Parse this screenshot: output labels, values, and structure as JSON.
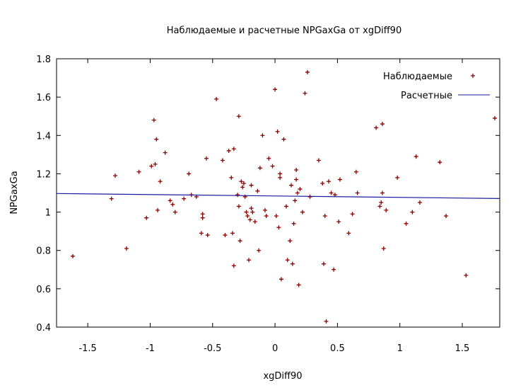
{
  "chart_data": {
    "type": "scatter",
    "title": "Наблюдаемые и расчетные NPGaxGa от xgDiff90",
    "xlabel": "xgDiff90",
    "ylabel": "NPGaxGa",
    "xlim": [
      -1.75,
      1.8
    ],
    "ylim": [
      0.4,
      1.8
    ],
    "grid": false,
    "legend_position": "top-right",
    "x_ticks": [
      -1.5,
      -1,
      -0.5,
      0,
      0.5,
      1,
      1.5
    ],
    "y_ticks": [
      0.4,
      0.6,
      0.8,
      1.0,
      1.2,
      1.4,
      1.6,
      1.8
    ],
    "x_tick_labels": [
      "-1.5",
      "-1",
      "-0.5",
      "0",
      "0.5",
      "1",
      "1.5"
    ],
    "y_tick_labels": [
      "0.4",
      "0.6",
      "0.8",
      "1",
      "1.2",
      "1.4",
      "1.6",
      "1.8"
    ],
    "series": [
      {
        "name": "Наблюдаемые",
        "kind": "points",
        "marker": "plus",
        "color": "#8b0000",
        "points": [
          [
            -1.62,
            0.77
          ],
          [
            -1.31,
            1.07
          ],
          [
            -1.28,
            1.19
          ],
          [
            -1.19,
            0.81
          ],
          [
            -1.09,
            1.21
          ],
          [
            -1.03,
            0.97
          ],
          [
            -0.99,
            1.24
          ],
          [
            -0.97,
            1.48
          ],
          [
            -0.96,
            1.25
          ],
          [
            -0.95,
            1.38
          ],
          [
            -0.94,
            1.01
          ],
          [
            -0.92,
            1.16
          ],
          [
            -0.88,
            1.31
          ],
          [
            -0.84,
            1.06
          ],
          [
            -0.82,
            1.04
          ],
          [
            -0.8,
            1.0
          ],
          [
            -0.73,
            1.07
          ],
          [
            -0.69,
            1.2
          ],
          [
            -0.67,
            1.09
          ],
          [
            -0.63,
            1.08
          ],
          [
            -0.59,
            0.89
          ],
          [
            -0.58,
            0.99
          ],
          [
            -0.58,
            0.97
          ],
          [
            -0.55,
            1.28
          ],
          [
            -0.54,
            0.88
          ],
          [
            -0.47,
            1.59
          ],
          [
            -0.42,
            1.27
          ],
          [
            -0.4,
            0.88
          ],
          [
            -0.37,
            1.32
          ],
          [
            -0.35,
            1.18
          ],
          [
            -0.34,
            0.89
          ],
          [
            -0.33,
            1.33
          ],
          [
            -0.33,
            0.72
          ],
          [
            -0.3,
            1.09
          ],
          [
            -0.29,
            1.5
          ],
          [
            -0.29,
            1.03
          ],
          [
            -0.28,
            0.85
          ],
          [
            -0.27,
            1.16
          ],
          [
            -0.26,
            1.13
          ],
          [
            -0.25,
            1.15
          ],
          [
            -0.24,
            1.08
          ],
          [
            -0.23,
            1.0
          ],
          [
            -0.22,
            0.98
          ],
          [
            -0.21,
            0.75
          ],
          [
            -0.2,
            0.96
          ],
          [
            -0.19,
            1.02
          ],
          [
            -0.19,
            1.14
          ],
          [
            -0.18,
            1.0
          ],
          [
            -0.16,
            0.95
          ],
          [
            -0.14,
            1.11
          ],
          [
            -0.13,
            0.8
          ],
          [
            -0.12,
            1.23
          ],
          [
            -0.1,
            1.4
          ],
          [
            -0.08,
            1.01
          ],
          [
            -0.07,
            0.98
          ],
          [
            -0.05,
            1.28
          ],
          [
            -0.02,
            1.24
          ],
          [
            0.0,
            1.64
          ],
          [
            0.01,
            0.98
          ],
          [
            0.02,
            1.42
          ],
          [
            0.03,
            0.92
          ],
          [
            0.04,
            1.2
          ],
          [
            0.04,
            1.18
          ],
          [
            0.05,
            0.65
          ],
          [
            0.07,
            1.38
          ],
          [
            0.09,
            1.03
          ],
          [
            0.1,
            0.75
          ],
          [
            0.12,
            0.85
          ],
          [
            0.13,
            1.14
          ],
          [
            0.14,
            0.73
          ],
          [
            0.15,
            0.94
          ],
          [
            0.16,
            1.06
          ],
          [
            0.17,
            1.17
          ],
          [
            0.17,
            1.22
          ],
          [
            0.18,
            1.1
          ],
          [
            0.19,
            0.62
          ],
          [
            0.2,
            1.12
          ],
          [
            0.22,
            1.0
          ],
          [
            0.24,
            1.62
          ],
          [
            0.26,
            1.73
          ],
          [
            0.28,
            1.08
          ],
          [
            0.35,
            1.27
          ],
          [
            0.38,
            1.15
          ],
          [
            0.39,
            0.73
          ],
          [
            0.4,
            0.98
          ],
          [
            0.41,
            0.43
          ],
          [
            0.43,
            1.16
          ],
          [
            0.45,
            1.1
          ],
          [
            0.47,
            0.7
          ],
          [
            0.48,
            1.09
          ],
          [
            0.51,
            0.95
          ],
          [
            0.52,
            1.17
          ],
          [
            0.59,
            0.89
          ],
          [
            0.62,
            0.99
          ],
          [
            0.65,
            1.21
          ],
          [
            0.66,
            1.1
          ],
          [
            0.81,
            1.44
          ],
          [
            0.84,
            1.03
          ],
          [
            0.85,
            1.05
          ],
          [
            0.86,
            1.46
          ],
          [
            0.86,
            1.1
          ],
          [
            0.87,
            0.81
          ],
          [
            0.89,
            1.01
          ],
          [
            0.98,
            1.18
          ],
          [
            1.05,
            0.94
          ],
          [
            1.1,
            1.0
          ],
          [
            1.13,
            1.29
          ],
          [
            1.16,
            1.05
          ],
          [
            1.32,
            1.26
          ],
          [
            1.37,
            0.98
          ],
          [
            1.53,
            0.67
          ],
          [
            1.76,
            1.49
          ]
        ]
      },
      {
        "name": "Расчетные",
        "kind": "line",
        "color": "#1a1aa0",
        "points": [
          [
            -1.75,
            1.097
          ],
          [
            1.8,
            1.071
          ]
        ]
      }
    ]
  }
}
